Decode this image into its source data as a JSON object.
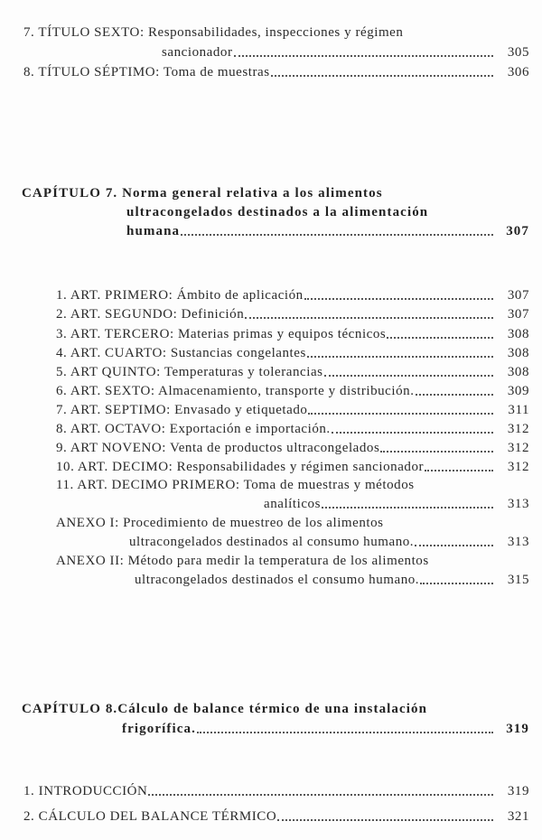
{
  "titulos": [
    {
      "lines": [
        "7. TÍTULO SEXTO: Responsabilidades, inspecciones y régimen",
        "sancionador"
      ],
      "page": "305"
    },
    {
      "lines": [
        "8. TÍTULO SÉPTIMO: Toma de muestras"
      ],
      "page": "306"
    }
  ],
  "chapter7": {
    "lines": [
      "CAPÍTULO 7. Norma general relativa a los alimentos",
      "ultracongelados destinados a la alimentación",
      "humana"
    ],
    "page": "307",
    "items": [
      {
        "lines": [
          "1. ART. PRIMERO: Ámbito de aplicación"
        ],
        "page": "307"
      },
      {
        "lines": [
          "2. ART. SEGUNDO: Definición"
        ],
        "page": "307"
      },
      {
        "lines": [
          "3. ART. TERCERO: Materias primas y equipos técnicos"
        ],
        "page": "308"
      },
      {
        "lines": [
          "4. ART. CUARTO: Sustancias congelantes"
        ],
        "page": "308"
      },
      {
        "lines": [
          "5. ART QUINTO: Temperaturas y tolerancias"
        ],
        "page": "308"
      },
      {
        "lines": [
          "6. ART. SEXTO: Almacenamiento, transporte y distribución."
        ],
        "page": "309"
      },
      {
        "lines": [
          "7. ART. SEPTIMO: Envasado y etiquetado"
        ],
        "page": "311"
      },
      {
        "lines": [
          "8. ART. OCTAVO: Exportación e importación."
        ],
        "page": "312"
      },
      {
        "lines": [
          "9. ART NOVENO: Venta de productos ultracongelados"
        ],
        "page": "312"
      },
      {
        "lines": [
          "10. ART. DECIMO: Responsabilidades y régimen sancionador"
        ],
        "page": "312"
      },
      {
        "lines": [
          "11. ART. DECIMO PRIMERO: Toma de muestras y métodos",
          "analíticos"
        ],
        "page": "313"
      },
      {
        "lines": [
          "ANEXO I: Procedimiento de muestreo de los alimentos",
          "ultracongelados destinados al consumo humano."
        ],
        "page": "313"
      },
      {
        "lines": [
          "ANEXO II: Método para medir la temperatura de los alimentos",
          "ultracongelados destinados el consumo humano."
        ],
        "page": "315"
      }
    ]
  },
  "chapter8": {
    "lines": [
      "CAPÍTULO 8.Cálculo de balance térmico de una instalación",
      "frigorífica."
    ],
    "page": "319",
    "items": [
      {
        "lines": [
          "1. INTRODUCCIÓN"
        ],
        "page": "319"
      },
      {
        "lines": [
          "2. CÁLCULO DEL BALANCE TÉRMICO"
        ],
        "page": "321"
      }
    ]
  }
}
